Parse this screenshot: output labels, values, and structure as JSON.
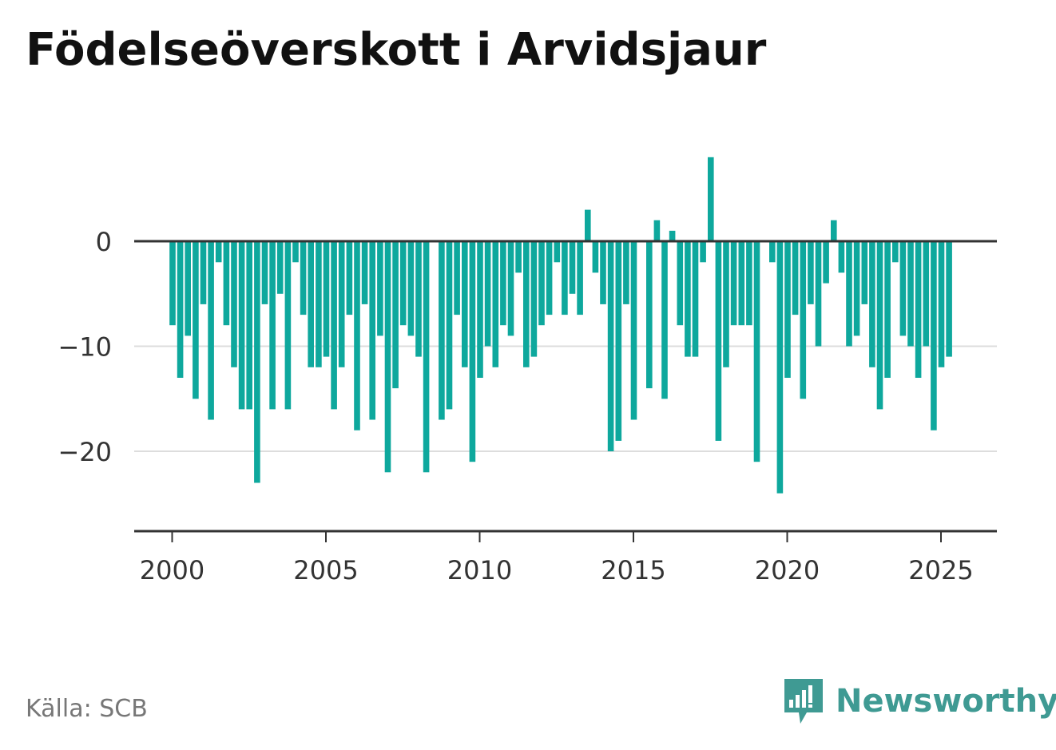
{
  "title": "Födelseöverskott i Arvidsjaur",
  "source": "Källa: SCB",
  "brand": "Newsworthy",
  "colors": {
    "bar": "#0ea89d",
    "zero_line": "#333333",
    "grid": "#dddddd",
    "axis": "#333333",
    "brand": "#3f9a93"
  },
  "chart_data": {
    "type": "bar",
    "frequency": "quarterly",
    "start": "2000 Q1",
    "xlim": [
      1997.5,
      2026.8
    ],
    "ylim": [
      -27.5,
      8.5
    ],
    "yticks": [
      0,
      -10,
      -20
    ],
    "ytick_labels": [
      "0",
      "−10",
      "−20"
    ],
    "xticks": [
      2000,
      2005,
      2010,
      2015,
      2020,
      2025
    ],
    "xtick_labels": [
      "2000",
      "2005",
      "2010",
      "2015",
      "2020",
      "2025"
    ],
    "grid": true,
    "values": [
      -8,
      -13,
      -9,
      -15,
      -6,
      -17,
      -2,
      -8,
      -12,
      -16,
      -16,
      -23,
      -6,
      -16,
      -5,
      -16,
      -2,
      -7,
      -12,
      -12,
      -11,
      -16,
      -12,
      -7,
      -18,
      -6,
      -17,
      -9,
      -22,
      -14,
      -8,
      -9,
      -11,
      -22,
      0,
      -17,
      -16,
      -7,
      -12,
      -21,
      -13,
      -10,
      -12,
      -8,
      -9,
      -3,
      -12,
      -11,
      -8,
      -7,
      -2,
      -7,
      -5,
      -7,
      3,
      -3,
      -6,
      -20,
      -19,
      -6,
      -17,
      0,
      -14,
      2,
      -15,
      1,
      -8,
      -11,
      -11,
      -2,
      8,
      -19,
      -12,
      -8,
      -8,
      -8,
      -21,
      0,
      -2,
      -24,
      -13,
      -7,
      -15,
      -6,
      -10,
      -4,
      2,
      -3,
      -10,
      -9,
      -6,
      -12,
      -16,
      -13,
      -2,
      -9,
      -10,
      -13,
      -10,
      -18,
      -12,
      -11
    ]
  }
}
